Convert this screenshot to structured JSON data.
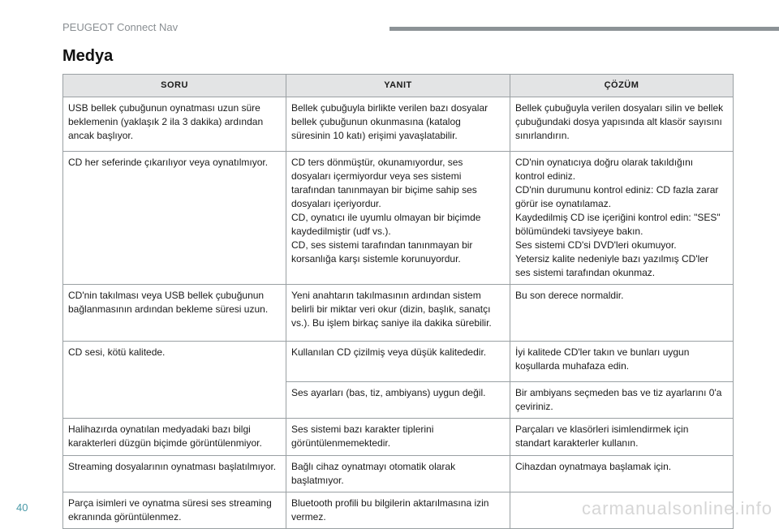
{
  "header": {
    "running_title": "PEUGEOT Connect Nav"
  },
  "title": "Medya",
  "table": {
    "columns": [
      "SORU",
      "YANIT",
      "ÇÖZÜM"
    ],
    "rows": [
      [
        "USB bellek çubuğunun oynatması uzun süre\nbeklemenin (yaklaşık 2 ila 3 dakika) ardından\nancak başlıyor.",
        "Bellek çubuğuyla birlikte verilen bazı dosyalar\nbellek çubuğunun okunmasına (katalog\nsüresinin 10 katı) erişimi yavaşlatabilir.",
        "Bellek çubuğuyla verilen dosyaları silin ve bellek\nçubuğundaki dosya yapısında alt klasör sayısını\nsınırlandırın."
      ],
      [
        "CD her seferinde çıkarılıyor veya oynatılmıyor.",
        "CD ters dönmüştür, okunamıyordur, ses\ndosyaları içermiyordur veya ses sistemi\ntarafından tanınmayan bir biçime sahip ses\ndosyaları içeriyordur.\nCD, oynatıcı ile uyumlu olmayan bir biçimde\nkaydedilmiştir (udf vs.).\nCD, ses sistemi tarafından tanınmayan bir\nkorsanlığa karşı sistemle korunuyordur.",
        "CD'nin oynatıcıya doğru olarak takıldığını\nkontrol ediniz.\nCD'nin durumunu kontrol ediniz: CD fazla zarar\ngörür ise oynatılamaz.\nKaydedilmiş CD ise içeriğini kontrol edin: \"SES\"\nbölümündeki tavsiyeye bakın.\nSes sistemi CD'si DVD'leri okumuyor.\nYetersiz kalite nedeniyle bazı yazılmış CD'ler\nses sistemi tarafından okunmaz."
      ],
      [
        "CD'nin takılması veya USB bellek çubuğunun\nbağlanmasının ardından bekleme süresi uzun.",
        "Yeni anahtarın takılmasının ardından sistem\nbelirli bir miktar veri okur (dizin, başlık, sanatçı\nvs.). Bu işlem birkaç saniye ila dakika sürebilir.",
        "Bu son derece normaldir."
      ],
      [
        "CD sesi, kötü kalitede.",
        "Kullanılan CD çizilmiş veya düşük kalitededir.",
        "İyi kalitede CD'ler takın ve bunları uygun\nkoşullarda muhafaza edin."
      ],
      [
        "",
        "Ses ayarları (bas, tiz, ambiyans) uygun değil.",
        "Bir ambiyans seçmeden bas ve tiz ayarlarını 0'a\nçeviriniz."
      ],
      [
        "Halihazırda oynatılan medyadaki bazı bilgi\nkarakterleri düzgün biçimde görüntülenmiyor.",
        "Ses sistemi bazı karakter tiplerini\ngörüntülenmemektedir.",
        "Parçaları ve klasörleri isimlendirmek için\nstandart karakterler kullanın."
      ],
      [
        "Streaming dosyalarının oynatması başlatılmıyor.",
        "Bağlı cihaz oynatmayı otomatik olarak\nbaşlatmıyor.",
        "Cihazdan oynatmaya başlamak için."
      ],
      [
        "Parça isimleri ve oynatma süresi ses streaming\nekranında görüntülenmez.",
        "Bluetooth profili bu bilgilerin aktarılmasına izin\nvermez.",
        ""
      ]
    ]
  },
  "page_number": "40",
  "watermark": "carmanualsonline.info"
}
